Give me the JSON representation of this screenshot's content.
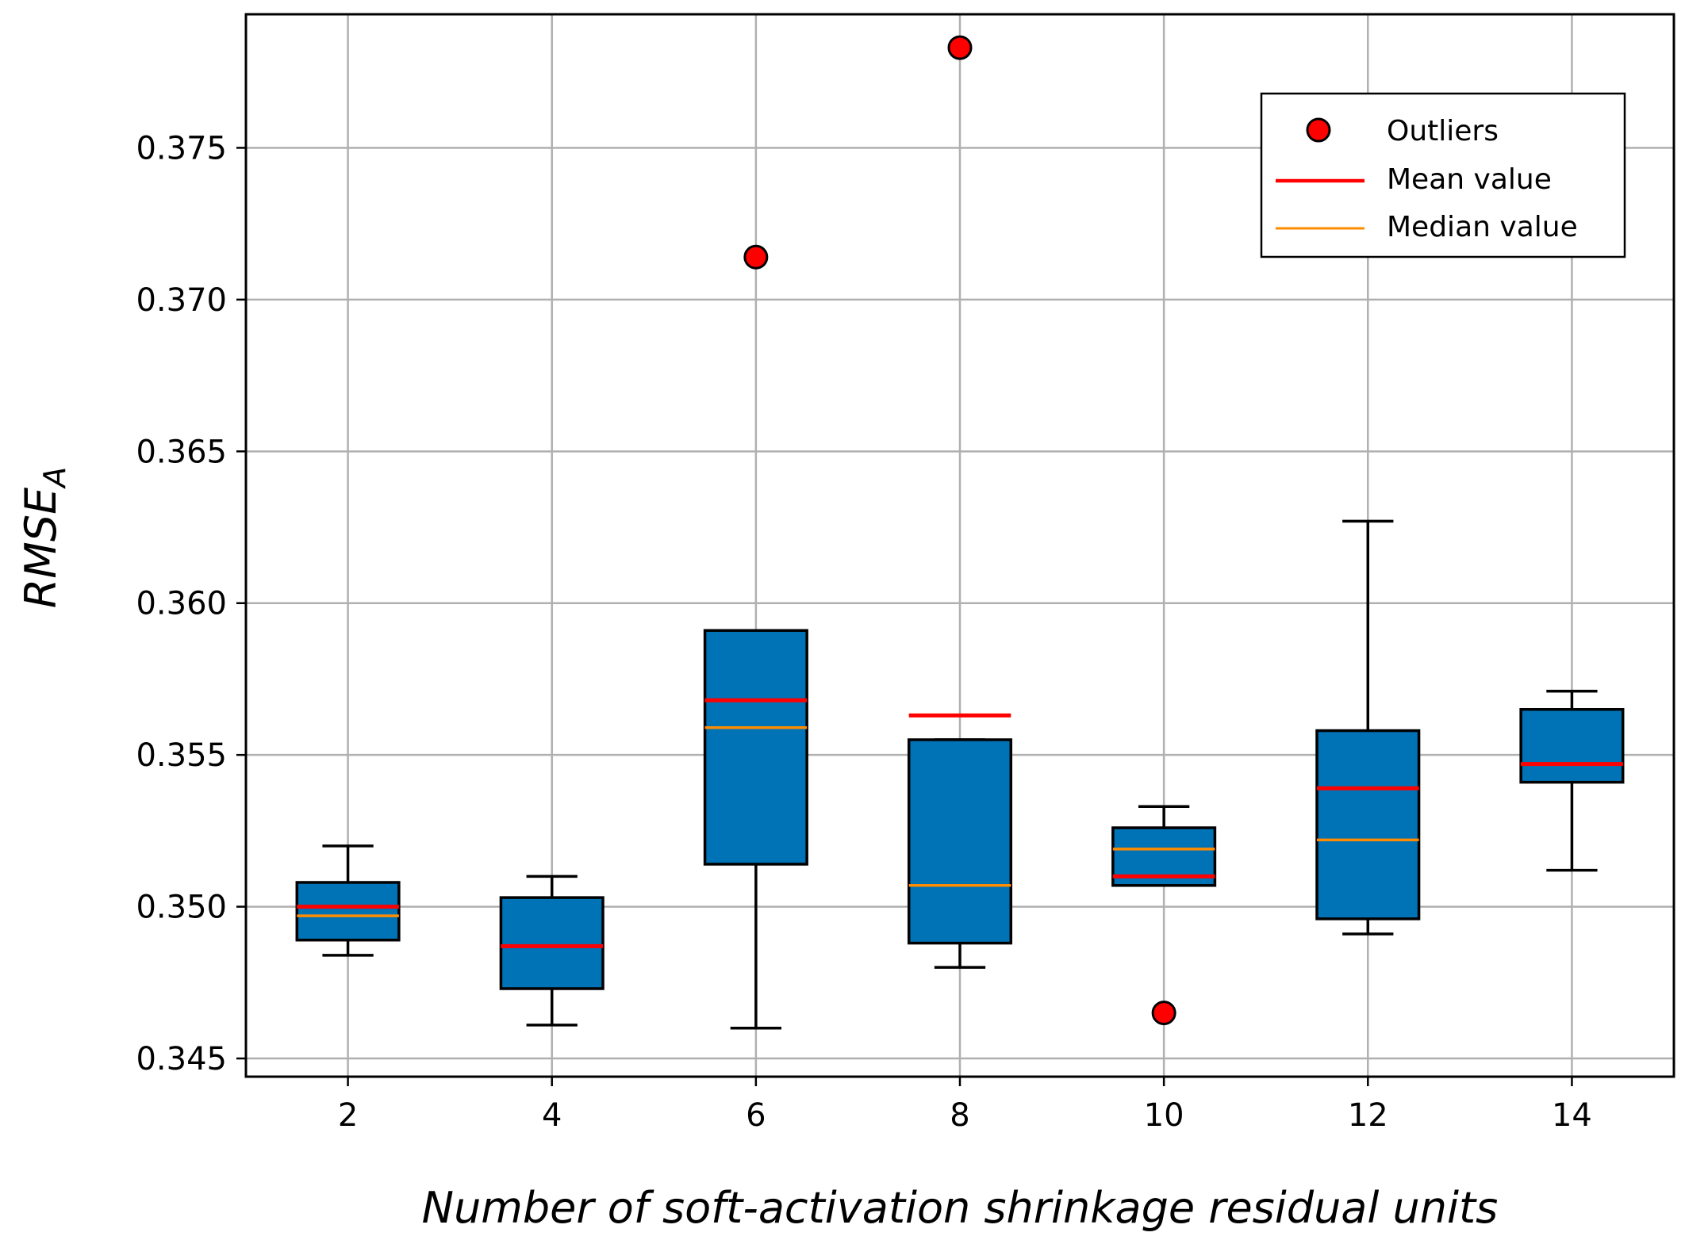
{
  "chart_data": {
    "type": "box",
    "title": "",
    "xlabel": "Number of soft-activation shrinkage residual units",
    "ylabel": {
      "main": "RMSE",
      "subscript": "A"
    },
    "x_ticks": [
      "2",
      "4",
      "6",
      "8",
      "10",
      "12",
      "14"
    ],
    "y_ticks": [
      "0.345",
      "0.350",
      "0.355",
      "0.360",
      "0.365",
      "0.370",
      "0.375"
    ],
    "y_tick_values": [
      0.345,
      0.35,
      0.355,
      0.36,
      0.365,
      0.37,
      0.375
    ],
    "xlim": [
      1,
      15
    ],
    "ylim": [
      0.3444,
      0.3794
    ],
    "grid": true,
    "legend_position": "top-right",
    "legend": {
      "outliers": "Outliers",
      "mean": "Mean value",
      "median": "Median value"
    },
    "colors": {
      "box_fill": "#0072b6",
      "box_edge": "#000000",
      "mean_line": "#ff0000",
      "median_line": "#ff8c00",
      "outlier_fill": "#ff0000",
      "grid": "#b0b0b0"
    },
    "boxes": [
      {
        "x": 2,
        "whisker_low": 0.3484,
        "q1": 0.3489,
        "median": 0.3497,
        "mean": 0.35,
        "q3": 0.3508,
        "whisker_high": 0.352,
        "outliers": []
      },
      {
        "x": 4,
        "whisker_low": 0.3461,
        "q1": 0.3473,
        "median": 0.3487,
        "mean": 0.3487,
        "q3": 0.3503,
        "whisker_high": 0.351,
        "outliers": []
      },
      {
        "x": 6,
        "whisker_low": 0.346,
        "q1": 0.3514,
        "median": 0.3559,
        "mean": 0.3568,
        "q3": 0.3591,
        "whisker_high": 0.3591,
        "outliers": [
          0.3714
        ]
      },
      {
        "x": 8,
        "whisker_low": 0.348,
        "q1": 0.3488,
        "median": 0.3507,
        "mean": 0.3563,
        "q3": 0.3555,
        "whisker_high": 0.3555,
        "outliers": [
          0.3783
        ]
      },
      {
        "x": 10,
        "whisker_low": 0.3507,
        "q1": 0.3507,
        "median": 0.3519,
        "mean": 0.351,
        "q3": 0.3526,
        "whisker_high": 0.3533,
        "outliers": [
          0.3465
        ]
      },
      {
        "x": 12,
        "whisker_low": 0.3491,
        "q1": 0.3496,
        "median": 0.3522,
        "mean": 0.3539,
        "q3": 0.3558,
        "whisker_high": 0.3627,
        "outliers": []
      },
      {
        "x": 14,
        "whisker_low": 0.3512,
        "q1": 0.3541,
        "median": 0.3547,
        "mean": 0.3547,
        "q3": 0.3565,
        "whisker_high": 0.3571,
        "outliers": []
      }
    ]
  }
}
